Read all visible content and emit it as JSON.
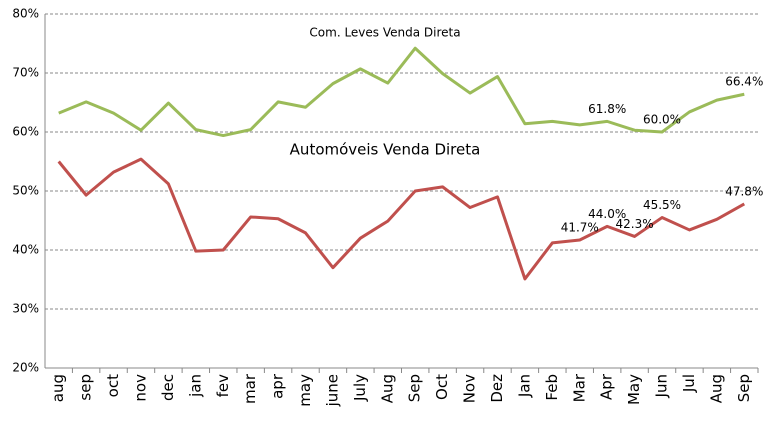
{
  "chart_data": {
    "type": "line",
    "categories": [
      "aug",
      "sep",
      "oct",
      "nov",
      "dec",
      "jan",
      "fev",
      "mar",
      "apr",
      "may",
      "june",
      "July",
      "Aug",
      "Sep",
      "Oct",
      "Nov",
      "Dez",
      "Jan",
      "Feb",
      "Mar",
      "Apr",
      "May",
      "Jun",
      "Jul",
      "Aug",
      "Sep"
    ],
    "series": [
      {
        "name": "Com. Leves Venda Direta",
        "color": "#9bbb59",
        "values": [
          63.2,
          65.1,
          63.2,
          60.3,
          64.9,
          60.4,
          59.4,
          60.4,
          65.1,
          64.2,
          68.2,
          70.7,
          68.3,
          74.2,
          69.9,
          66.6,
          69.4,
          61.4,
          61.8,
          61.2,
          61.8,
          60.3,
          60.0,
          63.4,
          65.4,
          66.4
        ],
        "value_labels": [
          null,
          null,
          null,
          null,
          null,
          null,
          null,
          null,
          null,
          null,
          null,
          null,
          null,
          null,
          null,
          null,
          null,
          null,
          null,
          null,
          "61.8%",
          null,
          "60.0%",
          null,
          null,
          "66.4%"
        ]
      },
      {
        "name": "Automóveis Venda Direta",
        "color": "#c0504d",
        "values": [
          55.0,
          49.3,
          53.2,
          55.4,
          51.2,
          39.8,
          40.0,
          45.6,
          45.3,
          42.9,
          37.0,
          42.0,
          44.9,
          50.0,
          50.7,
          47.2,
          49.0,
          35.1,
          41.2,
          41.7,
          44.0,
          42.3,
          45.5,
          43.4,
          45.2,
          47.8
        ],
        "value_labels": [
          null,
          null,
          null,
          null,
          null,
          null,
          null,
          null,
          null,
          null,
          null,
          null,
          null,
          null,
          null,
          null,
          null,
          null,
          null,
          "41.7%",
          "44.0%",
          "42.3%",
          "45.5%",
          null,
          null,
          "47.8%"
        ]
      }
    ],
    "ylim": [
      20,
      80
    ],
    "yticks": [
      {
        "value": 20,
        "label": "20%"
      },
      {
        "value": 30,
        "label": "30%"
      },
      {
        "value": 40,
        "label": "40%"
      },
      {
        "value": 50,
        "label": "50%"
      },
      {
        "value": 60,
        "label": "60%"
      },
      {
        "value": 70,
        "label": "70%"
      },
      {
        "value": 80,
        "label": "80%"
      }
    ],
    "grid": true
  }
}
